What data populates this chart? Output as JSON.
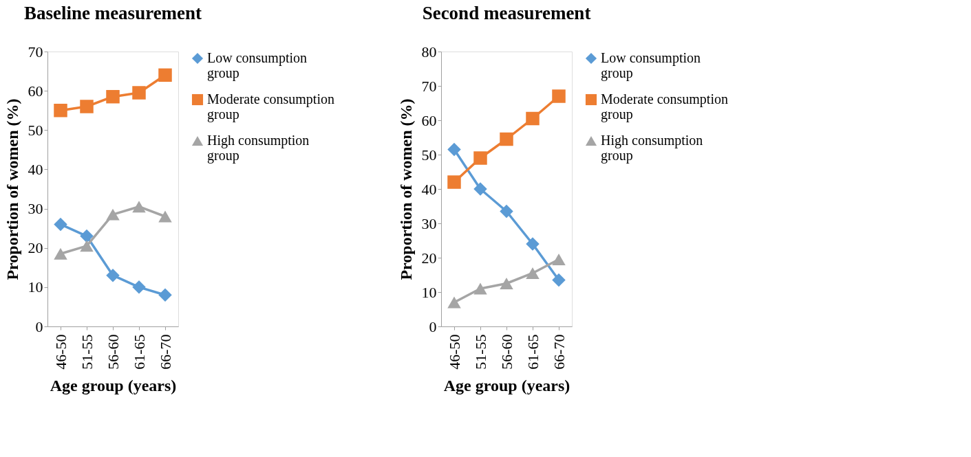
{
  "chart_data": [
    {
      "type": "line",
      "title": "Baseline measurement",
      "xlabel": "Age group (years)",
      "ylabel": "Proportion of women (%)",
      "categories": [
        "46-50",
        "51-55",
        "56-60",
        "61-65",
        "66-70"
      ],
      "ylim": [
        0,
        70
      ],
      "yticks": [
        0,
        10,
        20,
        30,
        40,
        50,
        60,
        70
      ],
      "grid": false,
      "legend": "right",
      "series": [
        {
          "name": "Low consumption group",
          "color": "#5b9bd5",
          "marker": "diamond",
          "values": [
            26,
            23,
            13,
            10,
            8
          ]
        },
        {
          "name": "Moderate consumption group",
          "color": "#ed7d31",
          "marker": "square",
          "values": [
            55,
            56,
            58.5,
            59.5,
            64
          ]
        },
        {
          "name": "High consumption group",
          "color": "#a5a5a5",
          "marker": "triangle",
          "values": [
            18.5,
            20.5,
            28.5,
            30.5,
            28
          ]
        }
      ]
    },
    {
      "type": "line",
      "title": "Second measurement",
      "xlabel": "Age group (years)",
      "ylabel": "Proportion of women (%)",
      "categories": [
        "46-50",
        "51-55",
        "56-60",
        "61-65",
        "66-70"
      ],
      "ylim": [
        0,
        80
      ],
      "yticks": [
        0,
        10,
        20,
        30,
        40,
        50,
        60,
        70,
        80
      ],
      "grid": false,
      "legend": "right",
      "series": [
        {
          "name": "Low consumption group",
          "color": "#5b9bd5",
          "marker": "diamond",
          "values": [
            51.5,
            40,
            33.5,
            24,
            13.5
          ]
        },
        {
          "name": "Moderate consumption group",
          "color": "#ed7d31",
          "marker": "square",
          "values": [
            42,
            49,
            54.5,
            60.5,
            67
          ]
        },
        {
          "name": "High consumption group",
          "color": "#a5a5a5",
          "marker": "triangle",
          "values": [
            7,
            11,
            12.5,
            15.5,
            19.5
          ]
        }
      ]
    }
  ]
}
